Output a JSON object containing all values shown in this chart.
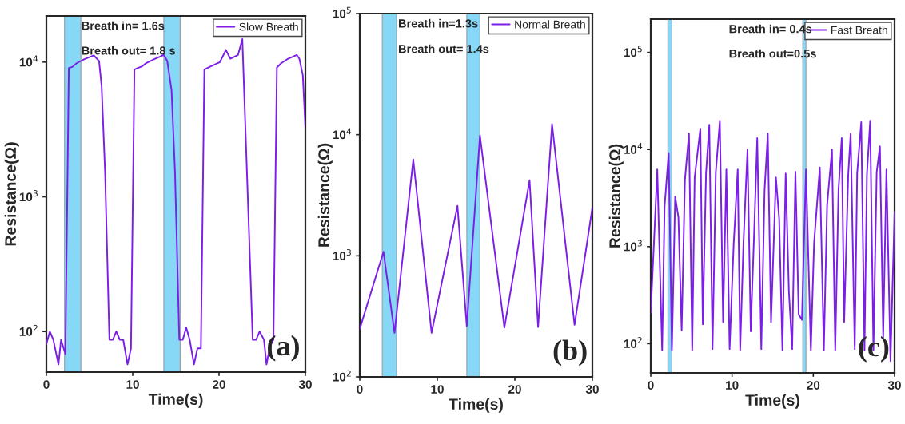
{
  "chart_data": [
    {
      "type": "line",
      "xlabel": "Time(s)",
      "ylabel": "Resistance(Ω)",
      "log": "y",
      "grid": false,
      "legend": "top right",
      "marker": "none",
      "line_style": "solid",
      "xlim": [
        0,
        30
      ],
      "xticks": [
        0,
        10,
        20,
        30
      ],
      "ylim": [
        50,
        22000
      ],
      "yticks": [
        {
          "value": 100,
          "label": "10$^{2}$"
        },
        {
          "value": 1000,
          "label": "10$^{3}$"
        },
        {
          "value": 10000,
          "label": "10$^{4}$"
        }
      ],
      "series": [
        {
          "name": "Slow Breath",
          "color": "#7b1fe8",
          "x": [
            0,
            0.4,
            0.8,
            1.4,
            1.7,
            2.2,
            2.6,
            3.0,
            3.5,
            4.4,
            5.5,
            6.1,
            6.4,
            6.8,
            7.3,
            7.7,
            8.1,
            8.5,
            8.9,
            9.4,
            9.8,
            10.2,
            10.6,
            11.1,
            11.6,
            12.5,
            13.6,
            14.0,
            14.5,
            14.9,
            15.4,
            15.8,
            16.2,
            16.6,
            17.1,
            17.5,
            17.9,
            18.3,
            18.9,
            20.1,
            20.8,
            21.3,
            22.2,
            22.7,
            23.0,
            23.6,
            23.9,
            24.3,
            24.7,
            25.2,
            25.5,
            25.9,
            26.3,
            26.7,
            27.2,
            27.9,
            29.0,
            29.3,
            29.7,
            30
          ],
          "values": [
            81,
            100,
            87,
            57,
            87,
            68,
            9040,
            9200,
            9800,
            10500,
            11200,
            10200,
            6620,
            1520,
            87,
            87,
            100,
            87,
            87,
            57,
            75,
            8800,
            9040,
            9300,
            9860,
            10500,
            11300,
            10200,
            6180,
            1520,
            87,
            87,
            107,
            87,
            57,
            75,
            75,
            8800,
            9200,
            10000,
            12300,
            10600,
            11300,
            14800,
            null,
            null,
            87,
            87,
            100,
            87,
            57,
            78,
            87,
            9120,
            9800,
            10500,
            11300,
            10600,
            8000,
            3300
          ]
        }
      ],
      "bands": [
        {
          "axis": "x",
          "from": 2.1,
          "to": 4.0,
          "color": "#87d7f7"
        },
        {
          "axis": "x",
          "from": 13.6,
          "to": 15.5,
          "color": "#87d7f7"
        }
      ],
      "annotations": [
        "Breath in= 1.6s",
        "Breath out= 1.8 s",
        "(a)"
      ]
    },
    {
      "type": "line",
      "xlabel": "Time(s)",
      "ylabel": "Resistance(Ω)",
      "log": "y",
      "grid": false,
      "legend": "top right",
      "marker": "none",
      "line_style": "solid",
      "xlim": [
        0,
        30
      ],
      "xticks": [
        0,
        10,
        20,
        30
      ],
      "ylim": [
        100,
        100000
      ],
      "yticks": [
        {
          "value": 100,
          "label": "10$^{2}$"
        },
        {
          "value": 1000,
          "label": "10$^{3}$"
        },
        {
          "value": 10000,
          "label": "10$^{4}$"
        },
        {
          "value": 100000,
          "label": "10$^{5}$"
        }
      ],
      "series": [
        {
          "name": "Normal Breath",
          "color": "#7b1fe8",
          "x": [
            0,
            3.06,
            4.48,
            6.9,
            9.26,
            12.6,
            13.8,
            15.5,
            18.65,
            21.9,
            23.0,
            24.8,
            27.7,
            30
          ],
          "values": [
            249,
            1080,
            231,
            6240,
            231,
            2590,
            262,
            9840,
            255,
            4200,
            258,
            12200,
            269,
            2500
          ]
        }
      ],
      "bands": [
        {
          "axis": "x",
          "from": 2.9,
          "to": 4.75,
          "color": "#87d7f7"
        },
        {
          "axis": "x",
          "from": 13.8,
          "to": 15.5,
          "color": "#87d7f7"
        }
      ],
      "annotations": [
        "Breath in=1.3s",
        "Breath out= 1.4s",
        "(b)"
      ]
    },
    {
      "type": "line",
      "xlabel": "Time(s)",
      "ylabel": "Resistance(Ω)",
      "log": "y",
      "grid": false,
      "legend": "top right",
      "marker": "none",
      "line_style": "solid",
      "xlim": [
        0,
        30
      ],
      "xticks": [
        0,
        10,
        20,
        30
      ],
      "ylim": [
        50,
        220000
      ],
      "yticks": [
        {
          "value": 100,
          "label": "10$^{2}$"
        },
        {
          "value": 1000,
          "label": "10$^{3}$"
        },
        {
          "value": 10000,
          "label": "10$^{4}$"
        },
        {
          "value": 100000,
          "label": "10$^{5}$"
        }
      ],
      "series": [
        {
          "name": "Fast Breath",
          "color": "#7b1fe8",
          "x": [
            0,
            0.8,
            1.4,
            1.7,
            2.2,
            2.6,
            3.0,
            3.4,
            3.8,
            4.2,
            4.7,
            5.1,
            5.4,
            6.1,
            6.4,
            6.8,
            7.2,
            7.6,
            8.0,
            8.5,
            8.9,
            9.3,
            9.7,
            10.2,
            10.7,
            11.0,
            11.4,
            11.9,
            12.3,
            12.7,
            13.1,
            13.6,
            14.0,
            14.4,
            14.8,
            15.4,
            15.8,
            16.2,
            16.6,
            17.0,
            17.4,
            17.8,
            18.2,
            18.6,
            19.1,
            19.7,
            20.1,
            20.8,
            21.3,
            21.7,
            22.3,
            22.7,
            23.1,
            23.5,
            23.8,
            24.3,
            24.6,
            25.1,
            25.4,
            25.9,
            26.3,
            26.6,
            27.0,
            27.4,
            27.8,
            28.2,
            28.6,
            29.0,
            29.5,
            30.0
          ],
          "values": [
            207,
            6240,
            85,
            2580,
            9200,
            85,
            3270,
            2000,
            137,
            4840,
            14600,
            85,
            5150,
            16400,
            158,
            5670,
            18000,
            88,
            5800,
            19800,
            166,
            6240,
            88,
            1060,
            6240,
            85,
            1060,
            10000,
            134,
            1250,
            13100,
            88,
            3760,
            14600,
            166,
            5150,
            1940,
            85,
            5670,
            342,
            88,
            5900,
            200,
            176,
            6240,
            85,
            1100,
            6540,
            85,
            2660,
            10000,
            85,
            3760,
            13100,
            166,
            5500,
            14600,
            88,
            5670,
            19100,
            85,
            5500,
            19800,
            85,
            5800,
            10800,
            117,
            6240,
            66,
            2270
          ]
        }
      ],
      "bands": [
        {
          "axis": "x",
          "from": 2.1,
          "to": 2.6,
          "color": "#87d7f7"
        },
        {
          "axis": "x",
          "from": 18.7,
          "to": 19.1,
          "color": "#87d7f7"
        }
      ],
      "annotations": [
        "Breath in= 0.4s",
        "Breath out=0.5s",
        "(c)"
      ]
    }
  ]
}
